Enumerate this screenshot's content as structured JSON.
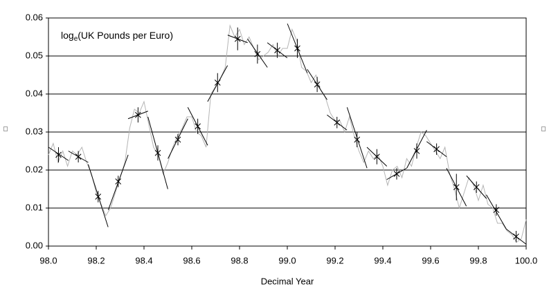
{
  "chart_data": {
    "type": "line",
    "annotation": {
      "text": "log",
      "sub": "e",
      "rest": "(UK Pounds per Euro)"
    },
    "x_label": "Decimal Year",
    "y_label": "□",
    "y2_label": "□",
    "xlim": [
      98,
      100
    ],
    "ylim": [
      0,
      0.06
    ],
    "xticks": [
      {
        "value": 98,
        "label": "98.0"
      },
      {
        "value": 98.2,
        "label": "98.2"
      },
      {
        "value": 98.4,
        "label": "98.4"
      },
      {
        "value": 98.6,
        "label": "98.6"
      },
      {
        "value": 98.8,
        "label": "98.8"
      },
      {
        "value": 99,
        "label": "99.0"
      },
      {
        "value": 99.2,
        "label": "99.2"
      },
      {
        "value": 99.4,
        "label": "99.4"
      },
      {
        "value": 99.6,
        "label": "99.6"
      },
      {
        "value": 99.8,
        "label": "99.8"
      },
      {
        "value": 100,
        "label": "100.0"
      }
    ],
    "yticks": [
      {
        "value": 0,
        "label": "0.00"
      },
      0.01,
      0.02,
      0.03,
      0.04,
      0.05,
      0.06
    ],
    "grid": true,
    "series": [
      {
        "color": "#b4b4b4",
        "x": [
          98.0,
          98.02,
          98.04,
          98.06,
          98.08,
          98.1,
          98.12,
          98.14,
          98.16,
          98.18,
          98.2,
          98.22,
          98.24,
          98.26,
          98.28,
          98.3,
          98.32,
          98.34,
          98.36,
          98.38,
          98.4,
          98.42,
          98.44,
          98.46,
          98.48,
          98.5,
          98.52,
          98.54,
          98.56,
          98.58,
          98.6,
          98.62,
          98.64,
          98.66,
          98.68,
          98.7,
          98.72,
          98.74,
          98.76,
          98.78,
          98.8,
          98.82,
          98.84,
          98.86,
          98.88,
          98.9,
          98.92,
          98.94,
          98.96,
          98.98,
          99.0,
          99.02,
          99.04,
          99.06,
          99.08,
          99.1,
          99.12,
          99.14,
          99.16,
          99.18,
          99.2,
          99.22,
          99.24,
          99.26,
          99.28,
          99.3,
          99.32,
          99.34,
          99.36,
          99.38,
          99.4,
          99.42,
          99.44,
          99.46,
          99.48,
          99.5,
          99.52,
          99.54,
          99.56,
          99.58,
          99.6,
          99.62,
          99.64,
          99.66,
          99.68,
          99.7,
          99.72,
          99.74,
          99.76,
          99.78,
          99.8,
          99.82,
          99.84,
          99.86,
          99.88,
          99.9,
          99.92,
          99.94,
          99.96,
          99.98,
          100.0
        ],
        "values": [
          0.024,
          0.027,
          0.022,
          0.025,
          0.021,
          0.025,
          0.024,
          0.026,
          0.022,
          0.019,
          0.014,
          0.011,
          0.008,
          0.01,
          0.014,
          0.018,
          0.022,
          0.031,
          0.036,
          0.035,
          0.038,
          0.032,
          0.026,
          0.024,
          0.019,
          0.022,
          0.026,
          0.029,
          0.031,
          0.034,
          0.034,
          0.03,
          0.029,
          0.026,
          0.04,
          0.042,
          0.044,
          0.047,
          0.058,
          0.055,
          0.057,
          0.053,
          0.055,
          0.052,
          0.049,
          0.05,
          0.051,
          0.053,
          0.05,
          0.052,
          0.052,
          0.057,
          0.054,
          0.047,
          0.046,
          0.043,
          0.045,
          0.041,
          0.039,
          0.035,
          0.033,
          0.033,
          0.03,
          0.034,
          0.029,
          0.025,
          0.022,
          0.025,
          0.023,
          0.024,
          0.021,
          0.016,
          0.02,
          0.021,
          0.018,
          0.023,
          0.021,
          0.026,
          0.03,
          0.029,
          0.027,
          0.025,
          0.023,
          0.026,
          0.019,
          0.015,
          0.01,
          0.014,
          0.018,
          0.016,
          0.012,
          0.016,
          0.011,
          0.01,
          0.006,
          0.006,
          0.004,
          0.003,
          0.001,
          0.002,
          0.007
        ]
      },
      {
        "color": "#000000",
        "x": [
          98.042,
          98.125,
          98.208,
          98.292,
          98.375,
          98.458,
          98.542,
          98.625,
          98.708,
          98.792,
          98.875,
          98.958,
          99.042,
          99.125,
          99.208,
          99.292,
          99.375,
          99.458,
          99.542,
          99.625,
          99.708,
          99.792,
          99.875,
          99.958
        ],
        "values": [
          0.024,
          0.0235,
          0.013,
          0.017,
          0.0345,
          0.0245,
          0.028,
          0.0315,
          0.043,
          0.0545,
          0.0505,
          0.0515,
          0.052,
          0.0425,
          0.0325,
          0.028,
          0.0235,
          0.019,
          0.025,
          0.0255,
          0.0155,
          0.0155,
          0.0095,
          0.0025
        ],
        "errors": [
          0.002,
          0.0015,
          0.0015,
          0.0015,
          0.002,
          0.002,
          0.0015,
          0.002,
          0.0025,
          0.003,
          0.0025,
          0.002,
          0.0025,
          0.002,
          0.0015,
          0.002,
          0.002,
          0.0015,
          0.002,
          0.0015,
          0.0035,
          0.0015,
          0.0015,
          0.0015
        ],
        "fit_start": [
          0.026,
          0.025,
          0.0215,
          0.0095,
          0.0335,
          0.034,
          0.023,
          0.0365,
          0.038,
          0.0555,
          0.0545,
          0.0535,
          0.0585,
          0.0465,
          0.0345,
          0.0365,
          0.026,
          0.0175,
          0.0205,
          0.0275,
          0.0205,
          0.0185,
          0.0135,
          0.0045
        ],
        "fit_end": [
          0.0225,
          0.022,
          0.005,
          0.024,
          0.0355,
          0.015,
          0.0335,
          0.0265,
          0.0475,
          0.0535,
          0.047,
          0.0495,
          0.0455,
          0.0385,
          0.0305,
          0.0205,
          0.021,
          0.0205,
          0.0305,
          0.0235,
          0.0105,
          0.0125,
          0.0045,
          0.0005
        ]
      }
    ]
  }
}
